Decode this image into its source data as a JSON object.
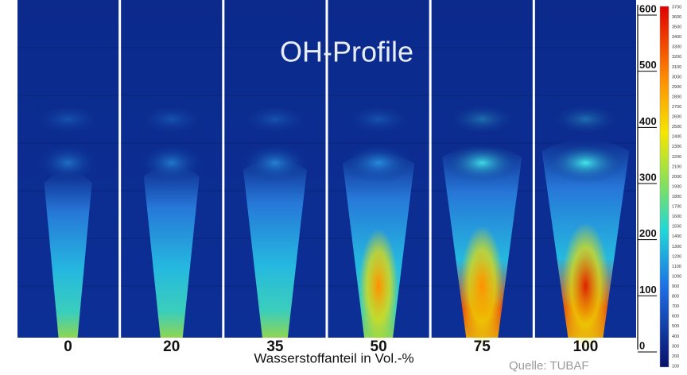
{
  "title": "OH-Profile",
  "panels": [
    "0",
    "20",
    "35",
    "50",
    "75",
    "100"
  ],
  "x_axis_label": "Wasserstoffanteil in Vol.-%",
  "height_ticks": [
    "600",
    "500",
    "400",
    "300",
    "200",
    "100",
    "0"
  ],
  "colorbar_ticks": [
    "3700",
    "3600",
    "3500",
    "3400",
    "3300",
    "3200",
    "3100",
    "3000",
    "2900",
    "2800",
    "2700",
    "2600",
    "2500",
    "2400",
    "2300",
    "2200",
    "2100",
    "2000",
    "1900",
    "1800",
    "1700",
    "1600",
    "1500",
    "1400",
    "1300",
    "1200",
    "1100",
    "1000",
    "900",
    "800",
    "700",
    "600",
    "500",
    "400",
    "300",
    "200",
    "100"
  ],
  "source": "Quelle: TUBAF"
}
